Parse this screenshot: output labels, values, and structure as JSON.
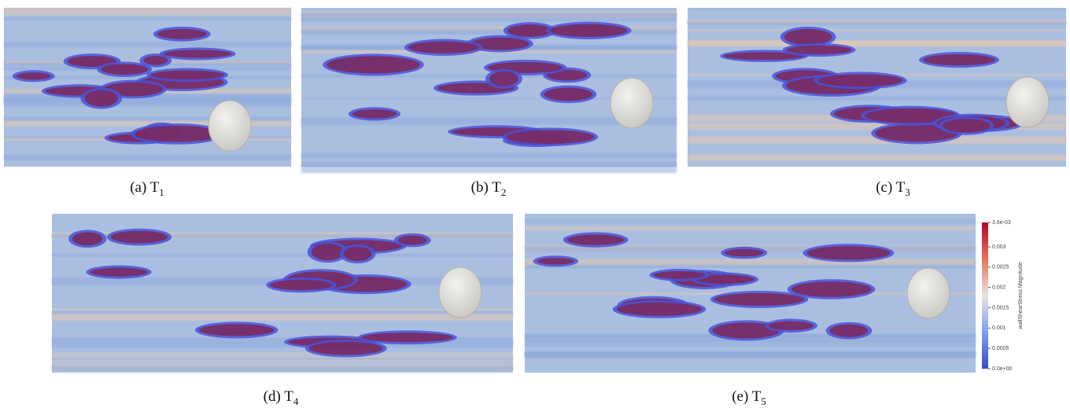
{
  "panels": [
    {
      "label": "(a) T",
      "subscript": "1"
    },
    {
      "label": "(b) T",
      "subscript": "2"
    },
    {
      "label": "(c) T",
      "subscript": "3"
    },
    {
      "label": "(d) T",
      "subscript": "4"
    },
    {
      "label": "(e) T",
      "subscript": "5"
    }
  ],
  "colorbar": {
    "title": "wallShearStress Magnitude",
    "range": [
      0,
      0.0036
    ],
    "ticks": [
      {
        "value": 0.0036,
        "label": "3.6e-03"
      },
      0.003,
      0.0025,
      0.002,
      0.0015,
      0.001,
      0.0005,
      {
        "value": 0,
        "label": "0.0e+00"
      }
    ]
  }
}
